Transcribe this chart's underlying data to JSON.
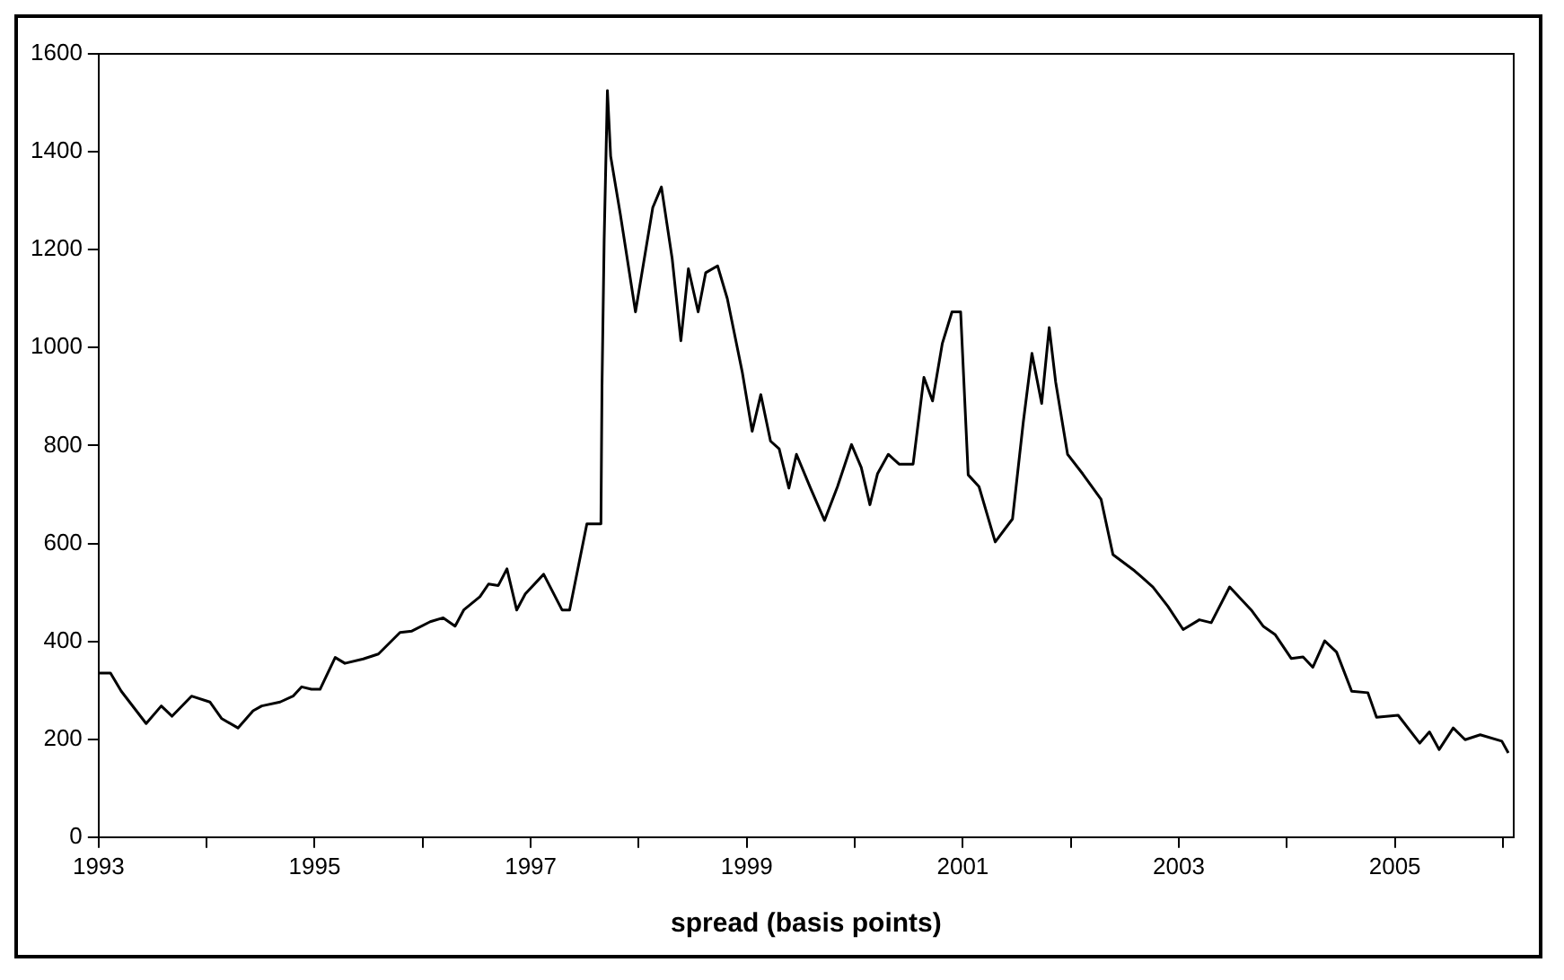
{
  "chart_data": {
    "type": "line",
    "xlabel": "spread (basis points)",
    "x": [
      1993.0,
      1993.11,
      1993.21,
      1993.44,
      1993.58,
      1993.68,
      1993.86,
      1994.03,
      1994.14,
      1994.29,
      1994.43,
      1994.51,
      1994.68,
      1994.8,
      1994.88,
      1994.97,
      1995.05,
      1995.19,
      1995.28,
      1995.45,
      1995.59,
      1995.79,
      1995.9,
      1996.07,
      1996.19,
      1996.3,
      1996.38,
      1996.53,
      1996.61,
      1996.7,
      1996.78,
      1996.87,
      1996.95,
      1997.12,
      1997.29,
      1997.36,
      1997.52,
      1997.65,
      1997.66,
      1997.68,
      1997.71,
      1997.74,
      1997.83,
      1997.97,
      1998.13,
      1998.21,
      1998.31,
      1998.39,
      1998.46,
      1998.55,
      1998.62,
      1998.73,
      1998.82,
      1998.96,
      1999.05,
      1999.13,
      1999.22,
      1999.3,
      1999.39,
      1999.46,
      1999.59,
      1999.72,
      1999.84,
      1999.97,
      2000.06,
      2000.14,
      2000.21,
      2000.31,
      2000.41,
      2000.54,
      2000.64,
      2000.72,
      2000.81,
      2000.9,
      2000.98,
      2001.05,
      2001.15,
      2001.3,
      2001.46,
      2001.56,
      2001.64,
      2001.73,
      2001.8,
      2001.86,
      2001.97,
      2002.11,
      2002.28,
      2002.39,
      2002.59,
      2002.76,
      2002.9,
      2003.04,
      2003.19,
      2003.3,
      2003.47,
      2003.67,
      2003.78,
      2003.89,
      2004.04,
      2004.15,
      2004.24,
      2004.35,
      2004.46,
      2004.6,
      2004.75,
      2004.83,
      2005.03,
      2005.23,
      2005.32,
      2005.41,
      2005.54,
      2005.65,
      2005.79,
      2005.99,
      2006.05
    ],
    "series": [
      {
        "color": "#000000",
        "values": [
          335,
          335,
          298,
          232,
          268,
          247,
          288,
          276,
          242,
          223,
          258,
          268,
          276,
          288,
          307,
          302,
          302,
          367,
          355,
          364,
          374,
          418,
          421,
          440,
          448,
          431,
          464,
          491,
          517,
          514,
          548,
          464,
          497,
          537,
          464,
          464,
          640,
          640,
          922,
          1221,
          1525,
          1391,
          1272,
          1073,
          1286,
          1328,
          1181,
          1014,
          1161,
          1073,
          1153,
          1167,
          1100,
          948,
          829,
          904,
          809,
          793,
          713,
          782,
          713,
          647,
          716,
          802,
          755,
          679,
          742,
          782,
          762,
          762,
          939,
          891,
          1008,
          1073,
          1073,
          740,
          716,
          603,
          650,
          848,
          988,
          886,
          1041,
          929,
          782,
          742,
          690,
          577,
          544,
          511,
          471,
          424,
          444,
          438,
          511,
          464,
          431,
          414,
          365,
          368,
          347,
          401,
          378,
          298,
          295,
          245,
          249,
          192,
          215,
          179,
          223,
          199,
          209,
          196,
          172
        ]
      }
    ],
    "xlim": [
      1993,
      2006.1
    ],
    "xticks": [
      1993,
      {
        "value": 1994,
        "label": null
      },
      1995,
      {
        "value": 1996,
        "label": null
      },
      1997,
      {
        "value": 1998,
        "label": null
      },
      1999,
      {
        "value": 2000,
        "label": null
      },
      2001,
      {
        "value": 2002,
        "label": null
      },
      2003,
      {
        "value": 2004,
        "label": null
      },
      2005,
      {
        "value": 2006,
        "label": null
      }
    ],
    "ylim": [
      0,
      1600
    ],
    "yticks": [
      0,
      200,
      400,
      600,
      800,
      1000,
      1200,
      1400,
      1600
    ],
    "grid": false,
    "legend": false,
    "marker": "none",
    "line_style": "solid"
  }
}
